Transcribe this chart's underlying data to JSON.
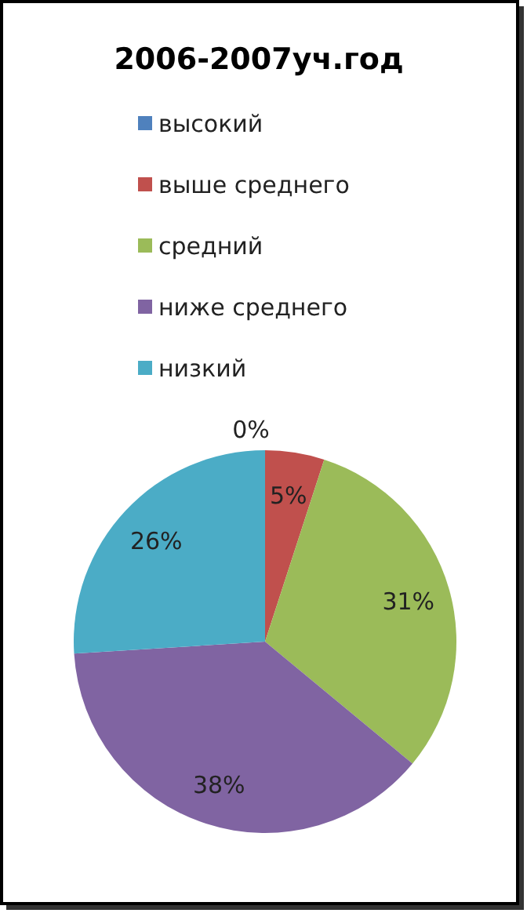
{
  "chart_data": {
    "type": "pie",
    "title": "2006-2007уч.год",
    "categories": [
      "высокий",
      "выше среднего",
      "средний",
      "ниже среднего",
      "низкий"
    ],
    "values": [
      0,
      5,
      31,
      38,
      26
    ],
    "colors": [
      "#4f81bd",
      "#c0504d",
      "#9bbb59",
      "#8064a2",
      "#4bacc6"
    ],
    "value_labels": [
      "0%",
      "5%",
      "31%",
      "38%",
      "26%"
    ],
    "legend": "top"
  }
}
